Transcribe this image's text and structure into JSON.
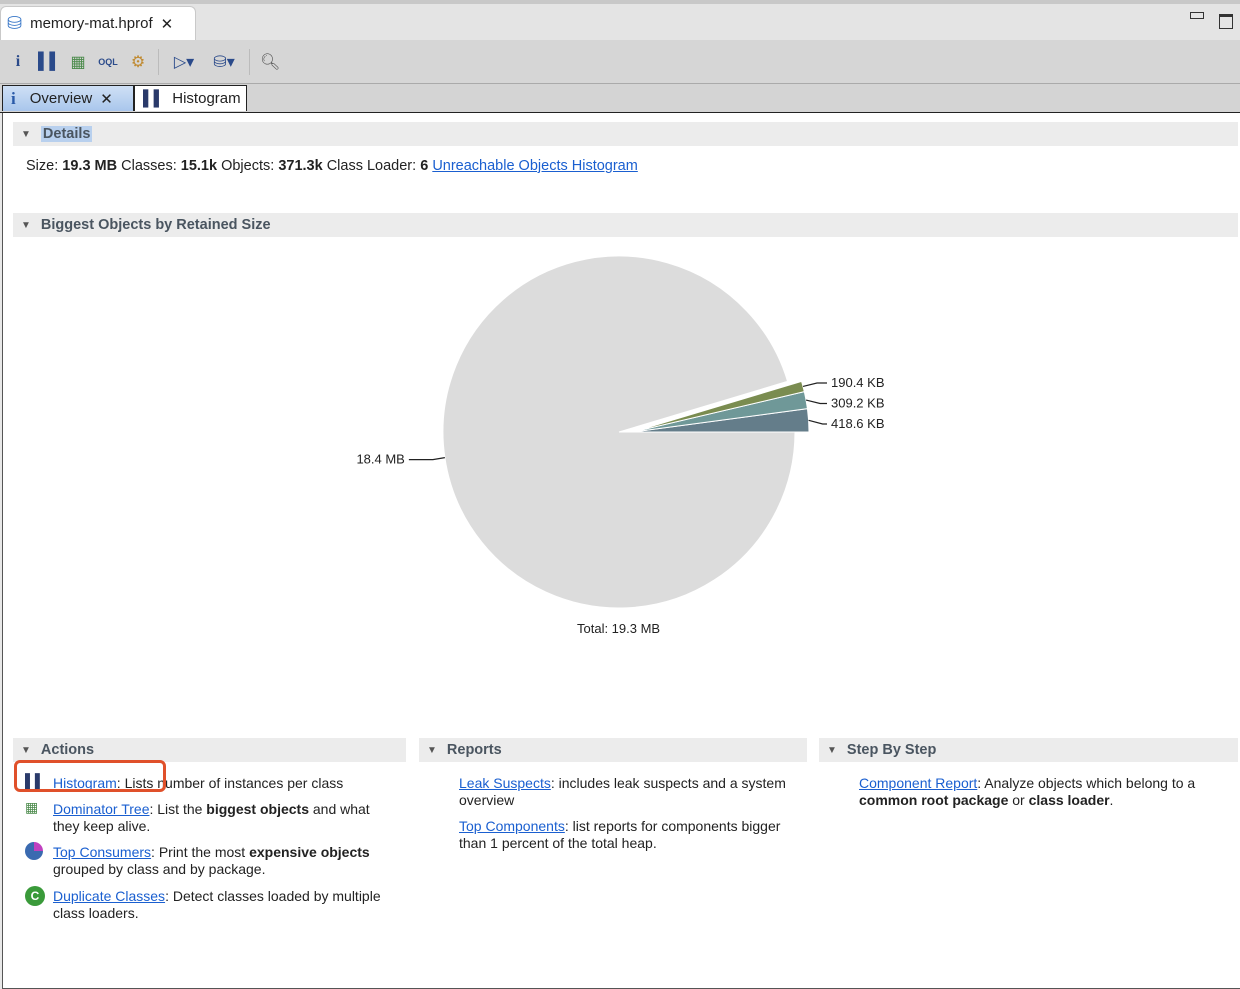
{
  "file_tab": {
    "label": "memory-mat.hprof",
    "icon": "database-icon"
  },
  "window_controls": [
    "minimize",
    "maximize"
  ],
  "toolbar": [
    {
      "icon": "info-icon"
    },
    {
      "icon": "histogram-icon"
    },
    {
      "icon": "dominator-tree-icon"
    },
    {
      "icon": "oql-icon"
    },
    {
      "icon": "gears-icon"
    },
    {
      "icon": "report-dropdown-icon"
    },
    {
      "icon": "heap-dump-dropdown-icon"
    },
    {
      "icon": "search-icon"
    }
  ],
  "editor_tabs": [
    {
      "label": "Overview",
      "icon": "info-icon",
      "active": true
    },
    {
      "label": "Histogram",
      "icon": "histogram-icon"
    }
  ],
  "details": {
    "title": "Details",
    "size_label": "Size:",
    "size": "19.3 MB",
    "classes_label": "Classes:",
    "classes": "15.1k",
    "objects_label": "Objects:",
    "objects": "371.3k",
    "loader_label": "Class Loader:",
    "loader": "6",
    "link": "Unreachable Objects Histogram"
  },
  "biggest": {
    "title": "Biggest Objects by Retained Size"
  },
  "chart_data": {
    "type": "pie",
    "values_kb": [
      418.6,
      309.2,
      190.4,
      18841.6
    ],
    "labels": [
      "418.6 KB",
      "309.2 KB",
      "190.4 KB",
      "18.4 MB"
    ],
    "colors": [
      "#647d8a",
      "#6f9898",
      "#7a8c50",
      "#dcdcdc"
    ],
    "total": "Total: 19.3 MB"
  },
  "actions": {
    "title": "Actions",
    "items": [
      {
        "link": "Histogram",
        "t1": ": Lists number of instances per class"
      },
      {
        "link": "Dominator Tree",
        "t1": ": List the ",
        "b1": "biggest objects",
        "t2": " and what they keep alive."
      },
      {
        "link": "Top Consumers",
        "t1": ": Print the most ",
        "b1": "expensive objects",
        "t2": " grouped by class and by package."
      },
      {
        "link": "Duplicate Classes",
        "t1": ": Detect classes loaded by multiple class loaders."
      }
    ]
  },
  "reports": {
    "title": "Reports",
    "items": [
      {
        "link": "Leak Suspects",
        "t1": ": includes leak suspects and a system overview"
      },
      {
        "link": "Top Components",
        "t1": ": list reports for components bigger than 1 percent of the total heap."
      }
    ]
  },
  "steps": {
    "title": "Step By Step",
    "items": [
      {
        "link": "Component Report",
        "t1": ": Analyze objects which belong to a ",
        "b1": "common root package",
        "t2": " or ",
        "b2": "class loader",
        "t3": "."
      }
    ]
  }
}
